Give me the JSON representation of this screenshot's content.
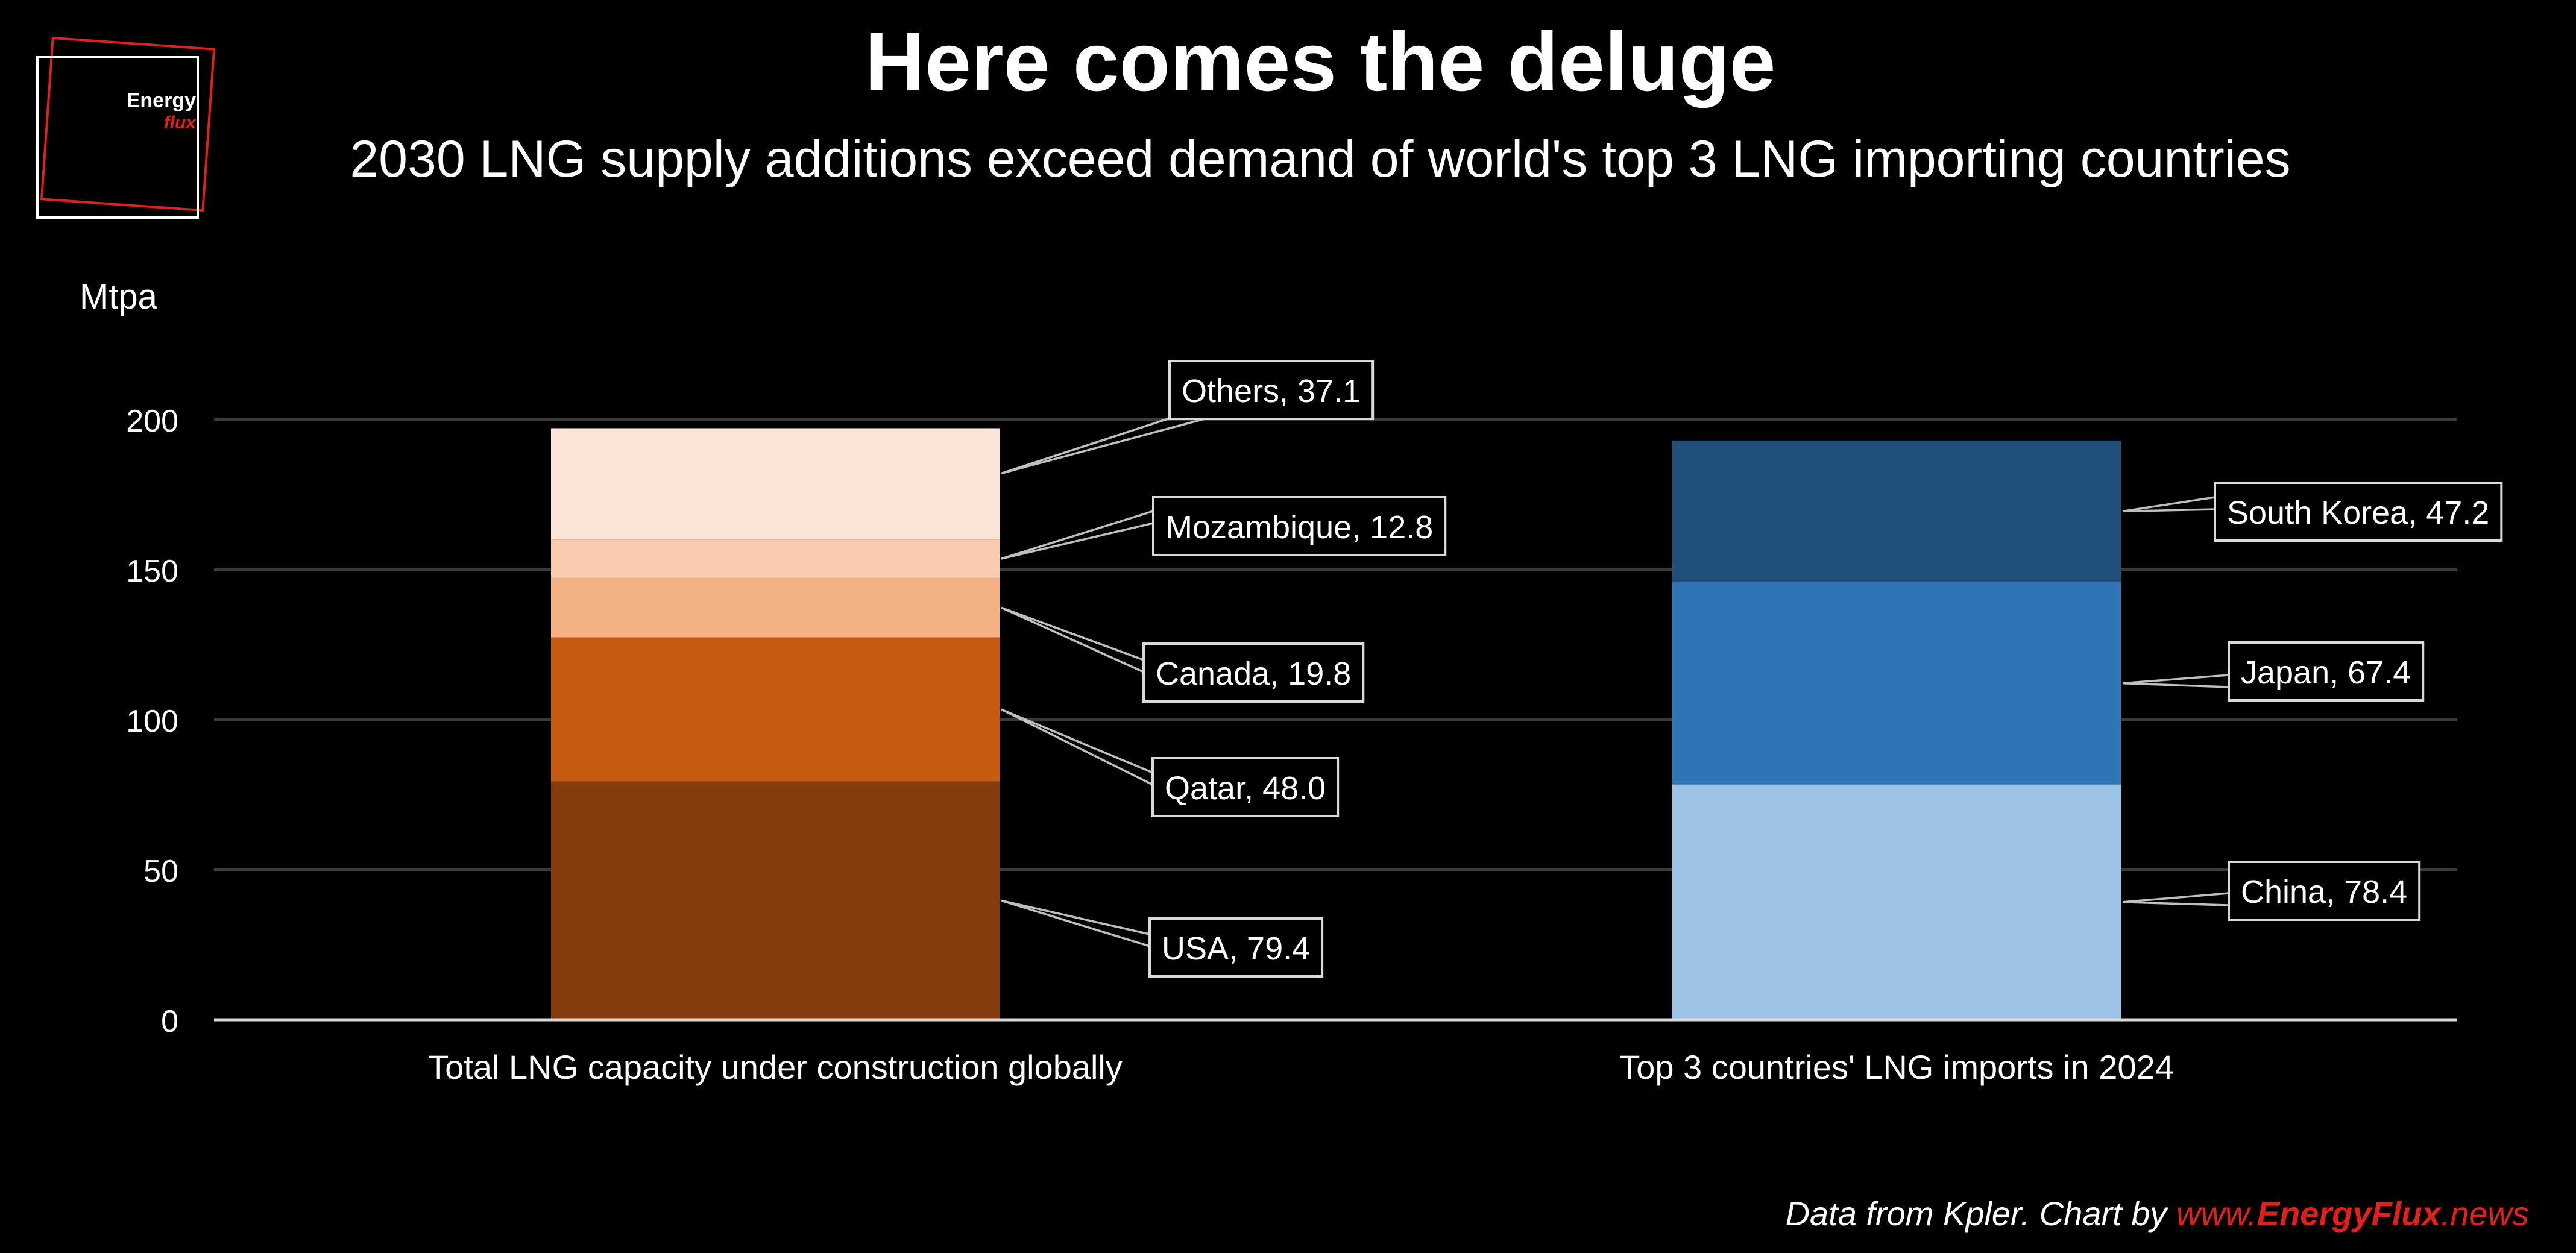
{
  "logo": {
    "line1": "Energy",
    "line2": "flux",
    "colors": {
      "line1": "#ffffff",
      "line2": "#e0201b",
      "frame_outer": "#e0201b",
      "frame_inner": "#ffffff"
    }
  },
  "title": "Here comes the deluge",
  "subtitle": "2030 LNG supply additions exceed demand of world's top 3 LNG importing countries",
  "footer": {
    "prefix": "Data from Kpler. Chart by ",
    "link_www": "www.",
    "link_brand": "EnergyFlux",
    "link_tld": ".news",
    "colors": {
      "text": "#ffffff",
      "link": "#e0201b"
    }
  },
  "chart_data": {
    "type": "bar",
    "stacked": true,
    "ylabel": "Mtpa",
    "ylim": [
      0,
      200
    ],
    "yticks": [
      0,
      50,
      100,
      150,
      200
    ],
    "grid": true,
    "categories": [
      "Total LNG capacity under construction globally",
      "Top 3 countries' LNG imports in 2024"
    ],
    "stacks": [
      {
        "category": "Total LNG capacity under construction globally",
        "segments": [
          {
            "name": "USA",
            "value": 79.4,
            "label": "USA, 79.4",
            "color": "#843c0c"
          },
          {
            "name": "Qatar",
            "value": 48.0,
            "label": "Qatar, 48.0",
            "color": "#c55a11"
          },
          {
            "name": "Canada",
            "value": 19.8,
            "label": "Canada, 19.8",
            "color": "#f4b183"
          },
          {
            "name": "Mozambique",
            "value": 12.8,
            "label": "Mozambique, 12.8",
            "color": "#f8cbad"
          },
          {
            "name": "Others",
            "value": 37.1,
            "label": "Others, 37.1",
            "color": "#fbe5d6"
          }
        ]
      },
      {
        "category": "Top 3 countries' LNG imports in 2024",
        "segments": [
          {
            "name": "China",
            "value": 78.4,
            "label": "China, 78.4",
            "color": "#9dc3e6"
          },
          {
            "name": "Japan",
            "value": 67.4,
            "label": "Japan, 67.4",
            "color": "#2e75b6"
          },
          {
            "name": "South Korea",
            "value": 47.2,
            "label": "South Korea, 47.2",
            "color": "#1f4e79"
          }
        ]
      }
    ]
  }
}
